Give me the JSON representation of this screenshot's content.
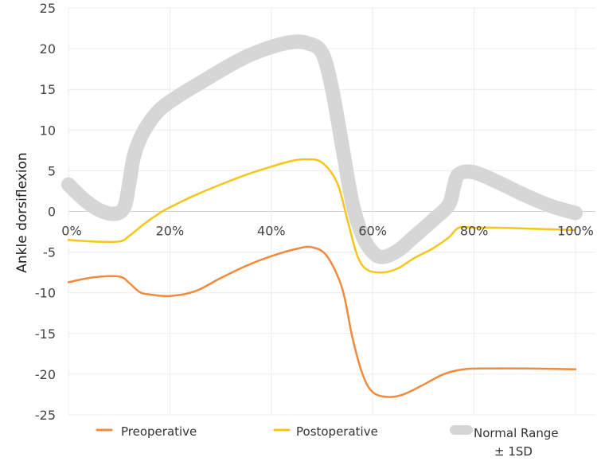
{
  "chart_data": {
    "type": "line",
    "ylabel": "Ankle dorsiflexion",
    "xlabel": "",
    "xlim": [
      0,
      100
    ],
    "ylim": [
      -25,
      25
    ],
    "x_ticks": [
      "0%",
      "20%",
      "40%",
      "60%",
      "80%",
      "100%"
    ],
    "y_ticks": [
      "25",
      "20",
      "15",
      "10",
      "5",
      "0",
      "-5",
      "-10",
      "-15",
      "-20",
      "-25"
    ],
    "grid": true,
    "legend_position": "bottom",
    "series": [
      {
        "name": "Preoperative",
        "color": "#f08a3c",
        "points": [
          [
            0,
            -8.7
          ],
          [
            5,
            -8.1
          ],
          [
            10,
            -8.0
          ],
          [
            12,
            -8.8
          ],
          [
            14,
            -9.9
          ],
          [
            16,
            -10.2
          ],
          [
            20,
            -10.4
          ],
          [
            25,
            -9.8
          ],
          [
            30,
            -8.2
          ],
          [
            35,
            -6.7
          ],
          [
            40,
            -5.5
          ],
          [
            45,
            -4.6
          ],
          [
            48,
            -4.4
          ],
          [
            51,
            -5.5
          ],
          [
            54,
            -9.5
          ],
          [
            56,
            -15.5
          ],
          [
            58,
            -20.0
          ],
          [
            60,
            -22.2
          ],
          [
            63,
            -22.8
          ],
          [
            66,
            -22.5
          ],
          [
            70,
            -21.3
          ],
          [
            74,
            -20.0
          ],
          [
            78,
            -19.4
          ],
          [
            83,
            -19.3
          ],
          [
            90,
            -19.3
          ],
          [
            100,
            -19.4
          ]
        ]
      },
      {
        "name": "Postoperative",
        "color": "#f5c518",
        "points": [
          [
            0,
            -3.5
          ],
          [
            5,
            -3.7
          ],
          [
            10,
            -3.7
          ],
          [
            12,
            -3.0
          ],
          [
            15,
            -1.5
          ],
          [
            18,
            -0.2
          ],
          [
            20,
            0.5
          ],
          [
            25,
            2.0
          ],
          [
            30,
            3.3
          ],
          [
            35,
            4.5
          ],
          [
            40,
            5.5
          ],
          [
            44,
            6.2
          ],
          [
            47,
            6.4
          ],
          [
            50,
            6.0
          ],
          [
            53,
            3.5
          ],
          [
            55,
            -1.0
          ],
          [
            57,
            -5.5
          ],
          [
            59,
            -7.2
          ],
          [
            62,
            -7.5
          ],
          [
            65,
            -7.0
          ],
          [
            68,
            -5.8
          ],
          [
            72,
            -4.5
          ],
          [
            75,
            -3.2
          ],
          [
            77,
            -2.0
          ],
          [
            80,
            -2.0
          ],
          [
            85,
            -2.0
          ],
          [
            90,
            -2.1
          ],
          [
            100,
            -2.3
          ]
        ]
      },
      {
        "name": "Normal Range\n± 1SD",
        "color": "#d6d6d6",
        "points": [
          [
            0,
            3.3
          ],
          [
            3,
            1.5
          ],
          [
            6,
            0.2
          ],
          [
            9,
            -0.3
          ],
          [
            11,
            0.5
          ],
          [
            12,
            3.5
          ],
          [
            13,
            7.0
          ],
          [
            15,
            10.0
          ],
          [
            18,
            12.5
          ],
          [
            22,
            14.3
          ],
          [
            26,
            15.8
          ],
          [
            30,
            17.3
          ],
          [
            35,
            19.0
          ],
          [
            40,
            20.2
          ],
          [
            44,
            20.8
          ],
          [
            47,
            20.7
          ],
          [
            50,
            19.5
          ],
          [
            52,
            15.0
          ],
          [
            54,
            8.0
          ],
          [
            56,
            1.0
          ],
          [
            58,
            -3.0
          ],
          [
            60,
            -5.0
          ],
          [
            62,
            -5.6
          ],
          [
            65,
            -4.8
          ],
          [
            68,
            -3.2
          ],
          [
            72,
            -1.0
          ],
          [
            75,
            0.8
          ],
          [
            76,
            3.0
          ],
          [
            77,
            4.6
          ],
          [
            80,
            4.8
          ],
          [
            85,
            3.5
          ],
          [
            90,
            2.0
          ],
          [
            95,
            0.7
          ],
          [
            100,
            -0.2
          ]
        ]
      }
    ]
  }
}
